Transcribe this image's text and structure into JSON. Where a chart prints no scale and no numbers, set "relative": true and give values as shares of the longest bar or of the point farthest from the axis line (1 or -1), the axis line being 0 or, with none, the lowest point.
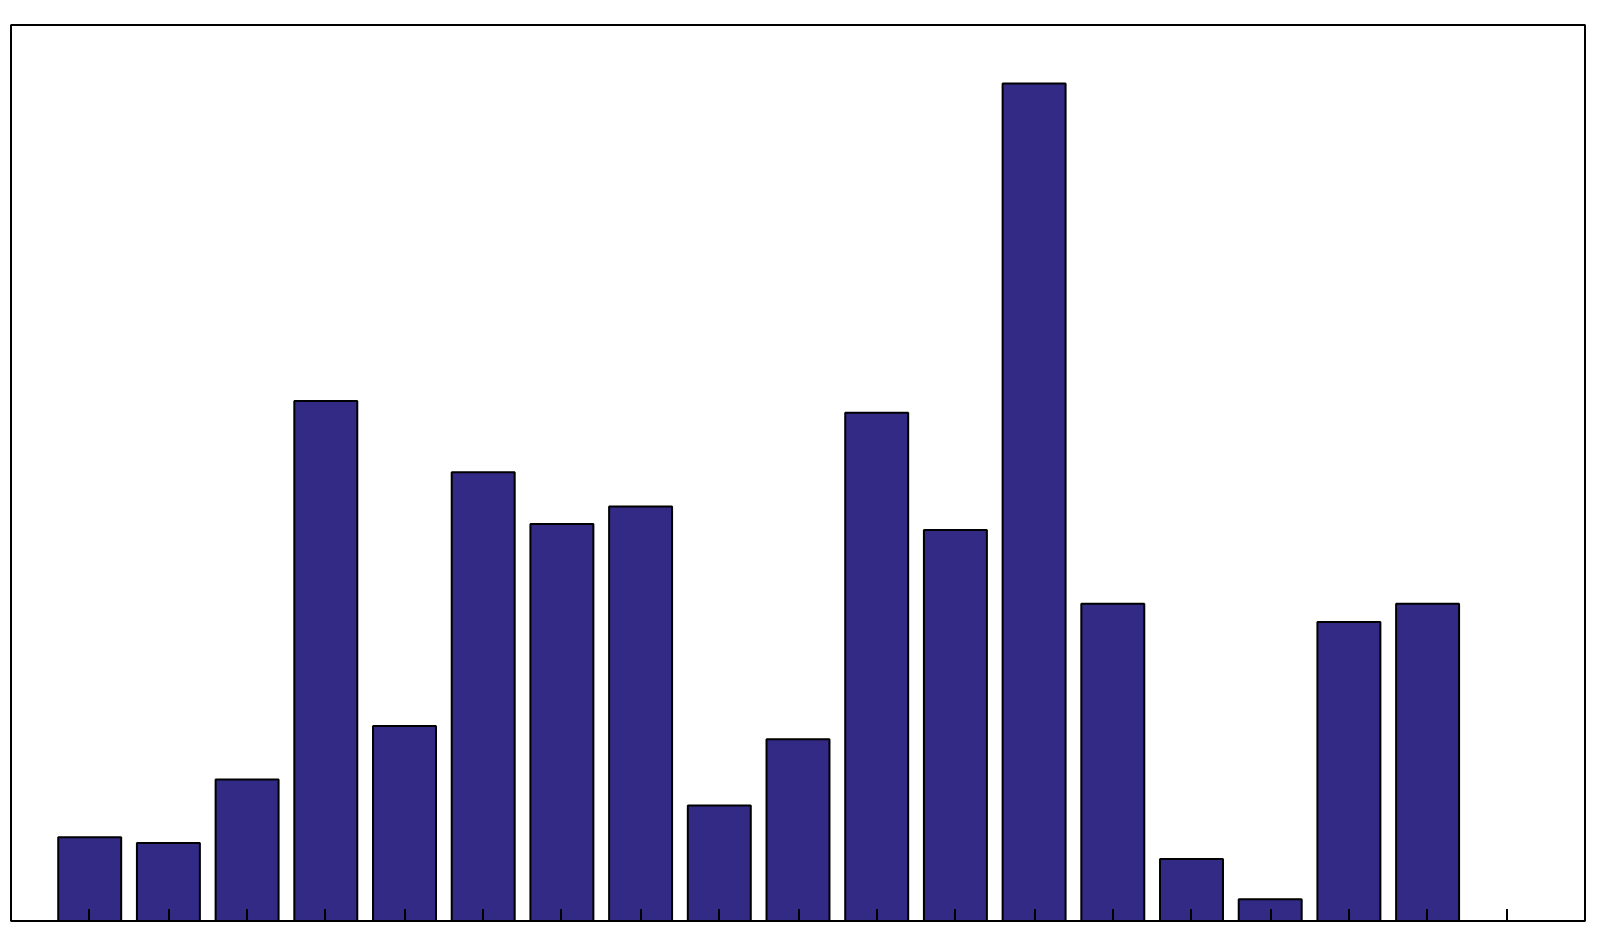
{
  "chart_data": {
    "type": "bar",
    "relative": true,
    "color": "#332a85",
    "categories": [
      null,
      null,
      null,
      null,
      null,
      null,
      null,
      null,
      null,
      null,
      null,
      null,
      null,
      null,
      null,
      null,
      null,
      null
    ],
    "values": [
      0.1,
      0.093,
      0.169,
      0.621,
      0.233,
      0.536,
      0.474,
      0.495,
      0.138,
      0.217,
      0.607,
      0.467,
      1.0,
      0.379,
      0.074,
      0.026,
      0.357,
      0.379
    ],
    "grid": false
  }
}
